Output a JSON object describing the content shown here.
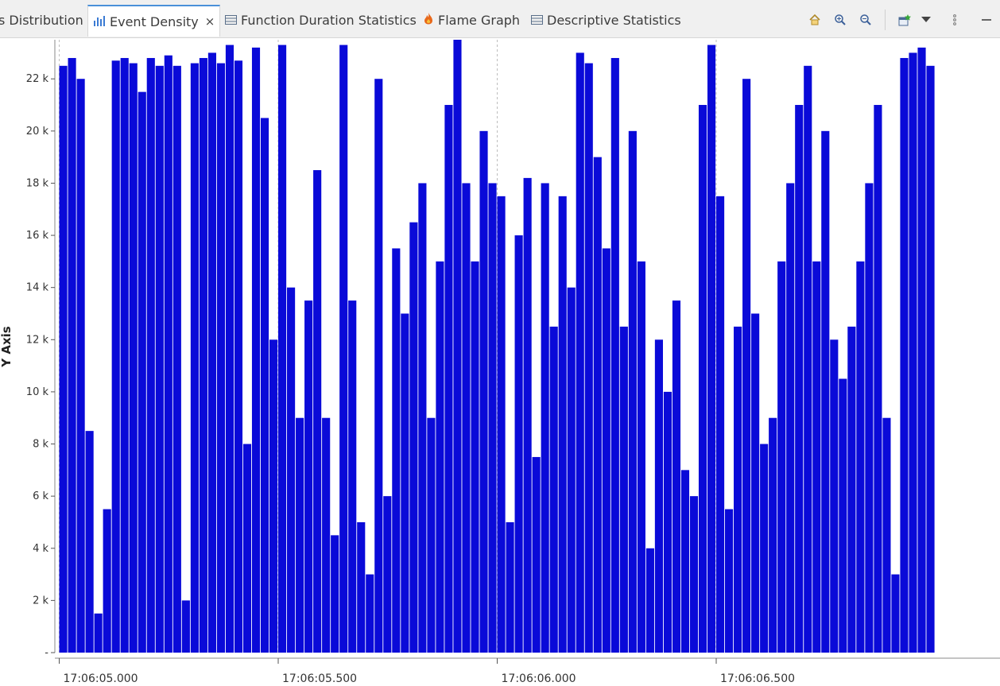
{
  "tabs": [
    {
      "label": "s Distribution",
      "icon": "none"
    },
    {
      "label": "Event Density",
      "icon": "bar-chart-icon",
      "active": true,
      "closable": true
    },
    {
      "label": "Function Duration Statistics",
      "icon": "table-icon"
    },
    {
      "label": "Flame Graph",
      "icon": "flame-icon"
    },
    {
      "label": "Descriptive Statistics",
      "icon": "table-icon"
    }
  ],
  "tab_close_glyph": "×",
  "toolbar": {
    "items": [
      "home-icon",
      "zoom-in-icon",
      "zoom-out-icon",
      "new-view-icon",
      "dropdown-icon",
      "view-menu-icon",
      "minimize-icon"
    ]
  },
  "colors": {
    "bar": "#0a0ad8",
    "grid": "#bdbdbd",
    "tab_accent": "#4a90d9"
  },
  "chart_data": {
    "type": "bar",
    "title": "",
    "ylabel": "Y Axis",
    "xlabel": "",
    "ylim": [
      0,
      23500
    ],
    "y_ticks": [
      {
        "value": 0,
        "label": "-"
      },
      {
        "value": 2000,
        "label": "2 k"
      },
      {
        "value": 4000,
        "label": "4 k"
      },
      {
        "value": 6000,
        "label": "6 k"
      },
      {
        "value": 8000,
        "label": "8 k"
      },
      {
        "value": 10000,
        "label": "10 k"
      },
      {
        "value": 12000,
        "label": "12 k"
      },
      {
        "value": 14000,
        "label": "14 k"
      },
      {
        "value": 16000,
        "label": "16 k"
      },
      {
        "value": 18000,
        "label": "18 k"
      },
      {
        "value": 20000,
        "label": "20 k"
      },
      {
        "value": 22000,
        "label": "22 k"
      }
    ],
    "x_ticks": [
      "17:06:05.000",
      "17:06:05.500",
      "17:06:06.000",
      "17:06:06.500"
    ],
    "x_start": "17:06:04.990",
    "x_end": "17:06:07.010",
    "grid": "x-only dashed",
    "series": [
      {
        "x": [
          "17:06:05.000",
          "17:06:05.020",
          "17:06:05.040",
          "17:06:05.060",
          "17:06:05.080",
          "17:06:05.100",
          "17:06:05.120",
          "17:06:05.140",
          "17:06:05.160",
          "17:06:05.180",
          "17:06:05.200",
          "17:06:05.220",
          "17:06:05.240",
          "17:06:05.260",
          "17:06:05.280",
          "17:06:05.300",
          "17:06:05.320",
          "17:06:05.340",
          "17:06:05.360",
          "17:06:05.380",
          "17:06:05.400",
          "17:06:05.420",
          "17:06:05.440",
          "17:06:05.460",
          "17:06:05.480",
          "17:06:05.500",
          "17:06:05.520",
          "17:06:05.540",
          "17:06:05.560",
          "17:06:05.580",
          "17:06:05.600",
          "17:06:05.620",
          "17:06:05.640",
          "17:06:05.660",
          "17:06:05.680",
          "17:06:05.700",
          "17:06:05.720",
          "17:06:05.740",
          "17:06:05.760",
          "17:06:05.780",
          "17:06:05.800",
          "17:06:05.820",
          "17:06:05.840",
          "17:06:05.860",
          "17:06:05.880",
          "17:06:05.900",
          "17:06:05.920",
          "17:06:05.940",
          "17:06:05.960",
          "17:06:05.980",
          "17:06:06.000",
          "17:06:06.020",
          "17:06:06.040",
          "17:06:06.060",
          "17:06:06.080",
          "17:06:06.100",
          "17:06:06.120",
          "17:06:06.140",
          "17:06:06.160",
          "17:06:06.180",
          "17:06:06.200",
          "17:06:06.220",
          "17:06:06.240",
          "17:06:06.260",
          "17:06:06.280",
          "17:06:06.300",
          "17:06:06.320",
          "17:06:06.340",
          "17:06:06.360",
          "17:06:06.380",
          "17:06:06.400",
          "17:06:06.420",
          "17:06:06.440",
          "17:06:06.460",
          "17:06:06.480",
          "17:06:06.500",
          "17:06:06.520",
          "17:06:06.540",
          "17:06:06.560",
          "17:06:06.580",
          "17:06:06.600",
          "17:06:06.620",
          "17:06:06.640",
          "17:06:06.660",
          "17:06:06.680",
          "17:06:06.700",
          "17:06:06.720",
          "17:06:06.740",
          "17:06:06.760",
          "17:06:06.780",
          "17:06:06.800",
          "17:06:06.820",
          "17:06:06.840",
          "17:06:06.860",
          "17:06:06.880",
          "17:06:06.900",
          "17:06:06.920",
          "17:06:06.940",
          "17:06:06.960",
          "17:06:06.980"
        ],
        "values": [
          22500,
          22800,
          22000,
          8500,
          1500,
          5500,
          22700,
          22800,
          22600,
          21500,
          22800,
          22500,
          22900,
          22500,
          2000,
          22600,
          22800,
          23000,
          22600,
          23300,
          22700,
          8000,
          23200,
          20500,
          12000,
          23300,
          14000,
          9000,
          13500,
          18500,
          9000,
          4500,
          23300,
          13500,
          5000,
          3000,
          22000,
          6000,
          15500,
          13000,
          16500,
          18000,
          9000,
          15000,
          21000,
          23500,
          18000,
          15000,
          20000,
          18000,
          17500,
          5000,
          16000,
          18200,
          7500,
          18000,
          12500,
          17500,
          14000,
          23000,
          22600,
          19000,
          15500,
          22800,
          12500,
          20000,
          15000,
          4000,
          12000,
          10000,
          13500,
          7000,
          6000,
          21000,
          23300,
          17500,
          5500,
          12500,
          22000,
          13000,
          8000,
          9000,
          15000,
          18000,
          21000,
          22500,
          15000,
          20000,
          12000,
          10500,
          12500,
          15000,
          18000,
          21000,
          9000,
          3000,
          22800,
          23000,
          23200,
          22500
        ]
      }
    ]
  }
}
